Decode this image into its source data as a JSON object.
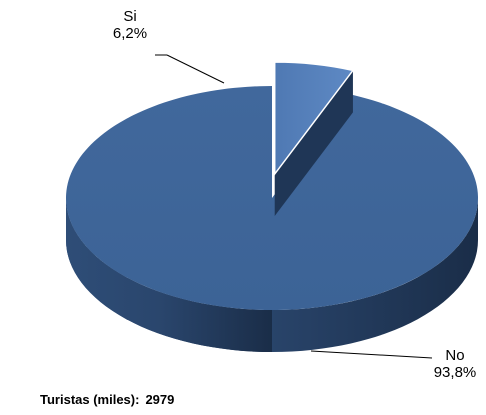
{
  "chart_data": {
    "type": "pie",
    "title": "",
    "slices": [
      {
        "label": "Si",
        "value": 6.2,
        "value_label": "6,2%",
        "exploded": true,
        "color": "#5581bd"
      },
      {
        "label": "No",
        "value": 93.8,
        "value_label": "93,8%",
        "exploded": false,
        "color": "#3f6699"
      }
    ],
    "style": "3d",
    "legend": "none"
  },
  "footer": {
    "label": "Turistas (miles):",
    "value": "2979"
  }
}
